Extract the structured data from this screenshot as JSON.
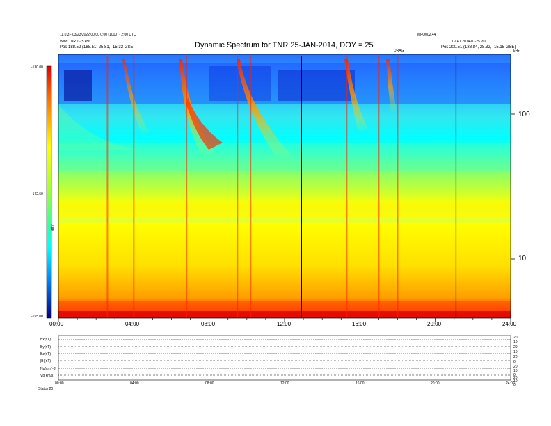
{
  "chart_data": {
    "type": "heatmap",
    "title": "Dynamic Spectrum for TNR 25-JAN-2014, DOY = 25",
    "header_left": [
      "11.0.3 - 03/23/2022 00:00 0:00 (1000) - 2:00 UTC",
      "Wind TNR 1-25 kHz",
      "Pos     188.52 (188.51, 25.81, -15.32 GSE)"
    ],
    "header_right": [
      "MFO002.44",
      "L2 A1 2014-01-25 v01",
      "Pos     200.51 (188.84, 28.32, -15.15 GSE)"
    ],
    "marker_label": "DRAG",
    "colorbar": {
      "max_label": "-130.00",
      "mid_label": "-142.50",
      "min_label": "-155.00",
      "unit": "dBV"
    },
    "y_right_ticks": [
      "100",
      "10"
    ],
    "y_unit": "kHz",
    "x_ticks": [
      "00:00",
      "04:00",
      "08:00",
      "12:00",
      "16:00",
      "20:00",
      "24:00"
    ],
    "xlim_hours": [
      0,
      24
    ],
    "vertical_lines_hours": [
      12.9,
      21.1
    ],
    "bursts_hours": [
      2.6,
      4.0,
      6.8,
      9.5,
      10.2,
      15.3,
      17.0,
      18.0
    ],
    "bottom_panel": {
      "left_labels": [
        "Bx(nT)",
        "By(nT)",
        "Bz(nT)",
        "|B|(nT)",
        "Np(cm^-3)",
        "Vp(km/s)"
      ],
      "bottom_left": "Status  20",
      "right_ticks": [
        "20",
        "10",
        "20",
        "10",
        "20",
        "0",
        "20",
        "10",
        "0",
        "20",
        "10",
        "0"
      ],
      "x_ticks": [
        "00:00",
        "04:00",
        "08:00",
        "12:00",
        "16:00",
        "20:00",
        "24:00"
      ]
    }
  }
}
